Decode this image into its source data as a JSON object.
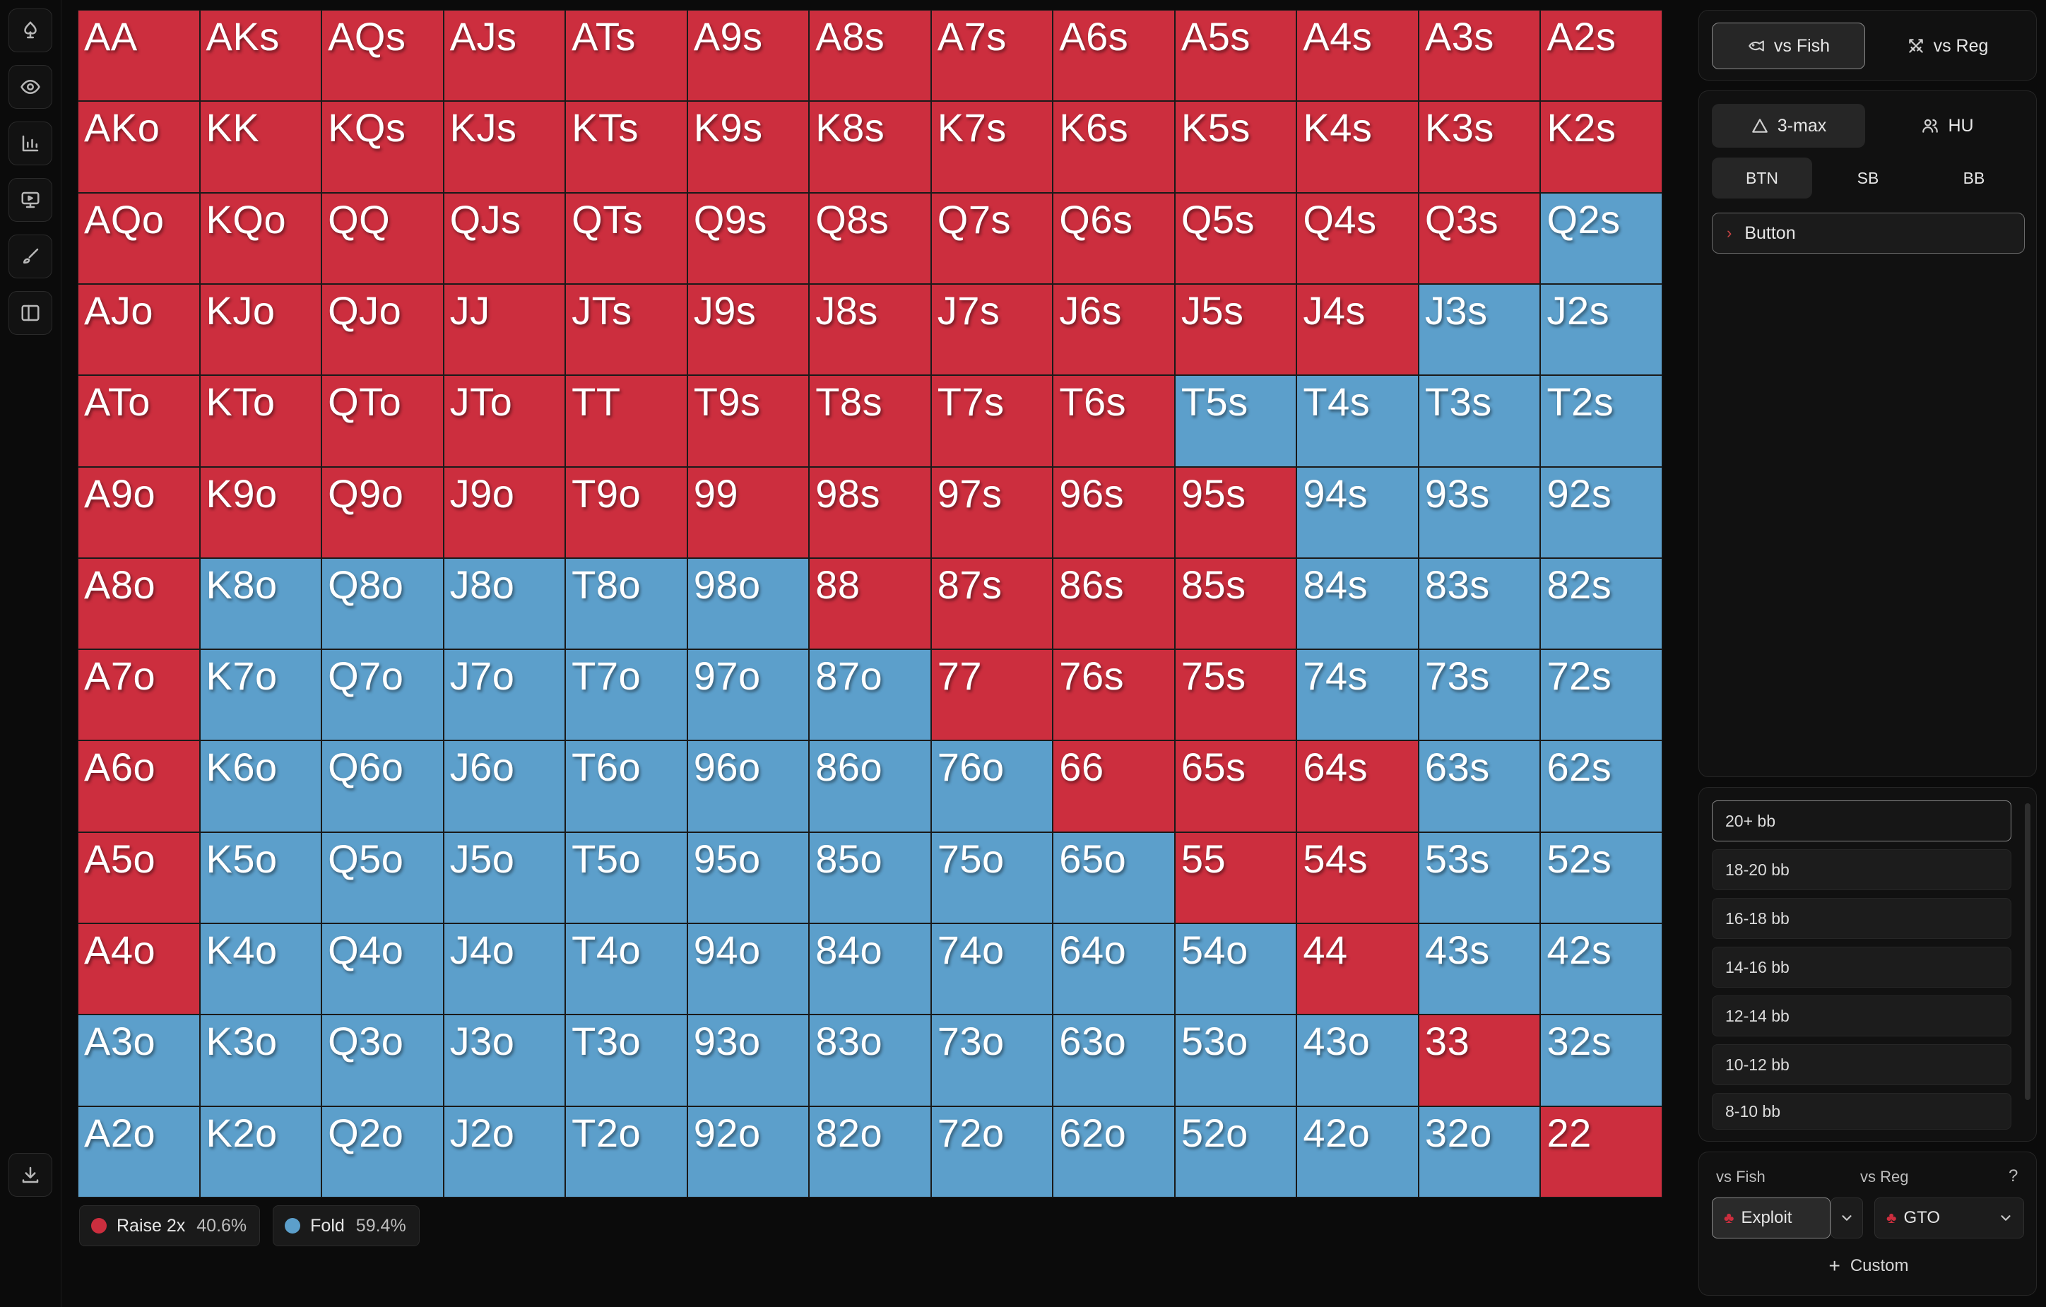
{
  "sidebar": {
    "items": [
      {
        "name": "logo-icon"
      },
      {
        "name": "eye-icon"
      },
      {
        "name": "bar-chart-icon"
      },
      {
        "name": "monitor-icon"
      },
      {
        "name": "brush-icon"
      },
      {
        "name": "split-view-icon"
      },
      {
        "name": "download-icon"
      }
    ]
  },
  "grid": {
    "actions_colors": {
      "raise": "#cc2e3e",
      "fold": "#5c9fcb"
    },
    "rows": [
      [
        "AA",
        "AKs",
        "AQs",
        "AJs",
        "ATs",
        "A9s",
        "A8s",
        "A7s",
        "A6s",
        "A5s",
        "A4s",
        "A3s",
        "A2s"
      ],
      [
        "AKo",
        "KK",
        "KQs",
        "KJs",
        "KTs",
        "K9s",
        "K8s",
        "K7s",
        "K6s",
        "K5s",
        "K4s",
        "K3s",
        "K2s"
      ],
      [
        "AQo",
        "KQo",
        "QQ",
        "QJs",
        "QTs",
        "Q9s",
        "Q8s",
        "Q7s",
        "Q6s",
        "Q5s",
        "Q4s",
        "Q3s",
        "Q2s"
      ],
      [
        "AJo",
        "KJo",
        "QJo",
        "JJ",
        "JTs",
        "J9s",
        "J8s",
        "J7s",
        "J6s",
        "J5s",
        "J4s",
        "J3s",
        "J2s"
      ],
      [
        "ATo",
        "KTo",
        "QTo",
        "JTo",
        "TT",
        "T9s",
        "T8s",
        "T7s",
        "T6s",
        "T5s",
        "T4s",
        "T3s",
        "T2s"
      ],
      [
        "A9o",
        "K9o",
        "Q9o",
        "J9o",
        "T9o",
        "99",
        "98s",
        "97s",
        "96s",
        "95s",
        "94s",
        "93s",
        "92s"
      ],
      [
        "A8o",
        "K8o",
        "Q8o",
        "J8o",
        "T8o",
        "98o",
        "88",
        "87s",
        "86s",
        "85s",
        "84s",
        "83s",
        "82s"
      ],
      [
        "A7o",
        "K7o",
        "Q7o",
        "J7o",
        "T7o",
        "97o",
        "87o",
        "77",
        "76s",
        "75s",
        "74s",
        "73s",
        "72s"
      ],
      [
        "A6o",
        "K6o",
        "Q6o",
        "J6o",
        "T6o",
        "96o",
        "86o",
        "76o",
        "66",
        "65s",
        "64s",
        "63s",
        "62s"
      ],
      [
        "A5o",
        "K5o",
        "Q5o",
        "J5o",
        "T5o",
        "95o",
        "85o",
        "75o",
        "65o",
        "55",
        "54s",
        "53s",
        "52s"
      ],
      [
        "A4o",
        "K4o",
        "Q4o",
        "J4o",
        "T4o",
        "94o",
        "84o",
        "74o",
        "64o",
        "54o",
        "44",
        "43s",
        "42s"
      ],
      [
        "A3o",
        "K3o",
        "Q3o",
        "J3o",
        "T3o",
        "93o",
        "83o",
        "73o",
        "63o",
        "53o",
        "43o",
        "33",
        "32s"
      ],
      [
        "A2o",
        "K2o",
        "Q2o",
        "J2o",
        "T2o",
        "92o",
        "82o",
        "72o",
        "62o",
        "52o",
        "42o",
        "32o",
        "22"
      ]
    ],
    "actions": [
      "RRRRRRRRRRRRR",
      "RRRRRRRRRRRRR",
      "RRRRRRRRRRRRF",
      "RRRRRRRRRRRFF",
      "RRRRRRRRRFFFF",
      "RRRRRRRRRRFFF",
      "RFFFFFRRRRFFF",
      "RFFFFFFRRRFFF",
      "RFFFFFFFRRRFF",
      "RFFFFFFFFRRFF",
      "RFFFFFFFFFRFF",
      "FFFFFFFFFFFRF",
      "FFFFFFFFFFFFR"
    ]
  },
  "legend": {
    "raise": {
      "label": "Raise 2x",
      "pct": "40.6%",
      "color": "#cc2e3e"
    },
    "fold": {
      "label": "Fold",
      "pct": "59.4%",
      "color": "#5c9fcb"
    }
  },
  "opponent_tabs": [
    {
      "label": "vs Fish",
      "icon": "fish-icon",
      "active": true
    },
    {
      "label": "vs Reg",
      "icon": "swords-icon",
      "active": false
    }
  ],
  "table_size_tabs": [
    {
      "label": "3-max",
      "icon": "triangle-icon",
      "active": true
    },
    {
      "label": "HU",
      "icon": "users-icon",
      "active": false
    }
  ],
  "position_tabs": [
    {
      "label": "BTN",
      "active": true
    },
    {
      "label": "SB",
      "active": false
    },
    {
      "label": "BB",
      "active": false
    }
  ],
  "tree": {
    "label": "Button"
  },
  "stacks": [
    "20+ bb",
    "18-20 bb",
    "16-18 bb",
    "14-16 bb",
    "12-14 bb",
    "10-12 bb",
    "8-10 bb"
  ],
  "strategy": {
    "fish_label": "vs Fish",
    "reg_label": "vs Reg",
    "help": "?",
    "fish_value": "Exploit",
    "reg_value": "GTO",
    "custom_label": "Custom",
    "custom_plus": "+"
  }
}
